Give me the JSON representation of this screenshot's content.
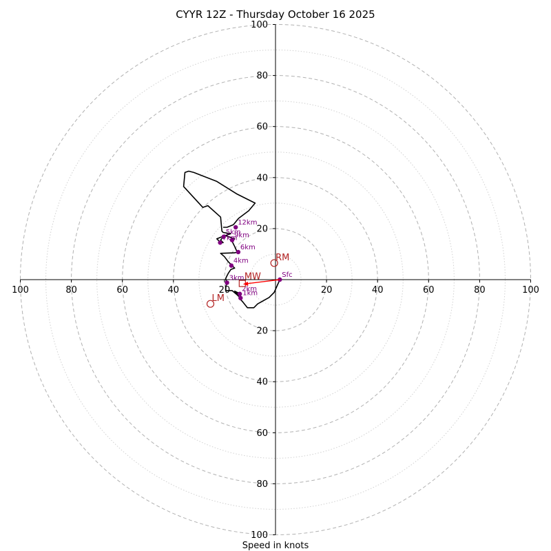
{
  "chart_data": {
    "type": "hodograph",
    "title": "CYYR 12Z - Thursday October 16 2025",
    "xlabel": "Speed in knots",
    "range": [
      -100,
      100
    ],
    "ring_major": [
      20,
      40,
      60,
      80,
      100
    ],
    "ring_minor": [
      10,
      30,
      50,
      70,
      90
    ],
    "x_tick_labels": [
      "100",
      "80",
      "60",
      "40",
      "20",
      "20",
      "40",
      "60",
      "80",
      "100"
    ],
    "x_tick_values": [
      -100,
      -80,
      -60,
      -40,
      -20,
      20,
      40,
      60,
      80,
      100
    ],
    "y_tick_labels": [
      "100",
      "80",
      "60",
      "40",
      "20",
      "20",
      "40",
      "60",
      "80",
      "100"
    ],
    "y_tick_values": [
      100,
      80,
      60,
      40,
      20,
      -20,
      -40,
      -60,
      -80,
      -100
    ],
    "profile_color": "#000000",
    "height_color": "#800080",
    "motion_color": "#b22222",
    "mean_wind_color": "#ff0000",
    "grid_color": "#b0b0b0",
    "profile": [
      [
        1.7,
        0
      ],
      [
        -0.5,
        -5
      ],
      [
        -2.5,
        -7
      ],
      [
        -7,
        -9.5
      ],
      [
        -8.5,
        -11
      ],
      [
        -11,
        -11
      ],
      [
        -13,
        -8.5
      ],
      [
        -14,
        -7.5
      ],
      [
        -13.5,
        -5.5
      ],
      [
        -15,
        -5
      ],
      [
        -16,
        -4.5
      ],
      [
        -15,
        -5.5
      ],
      [
        -14.5,
        -6.5
      ],
      [
        -15,
        -6
      ],
      [
        -17,
        -4.3
      ],
      [
        -19.5,
        -4.3
      ],
      [
        -19.5,
        -2.5
      ],
      [
        -19,
        -1.5
      ],
      [
        -19,
        -1
      ],
      [
        -19.5,
        0
      ],
      [
        -19.5,
        0.5
      ],
      [
        -19,
        1.5
      ],
      [
        -18.5,
        2.5
      ],
      [
        -17.5,
        4
      ],
      [
        -16,
        4.5
      ],
      [
        -17,
        5.5
      ],
      [
        -17.5,
        6
      ],
      [
        -18.5,
        7
      ],
      [
        -20,
        9
      ],
      [
        -21.5,
        10.3
      ],
      [
        -16,
        10.5
      ],
      [
        -15,
        10.8
      ],
      [
        -16,
        13
      ],
      [
        -17,
        15
      ],
      [
        -16,
        16
      ],
      [
        -17.5,
        16.5
      ],
      [
        -19,
        17
      ],
      [
        -20,
        17.5
      ],
      [
        -21.5,
        15.5
      ],
      [
        -20.5,
        14.5
      ],
      [
        -21.5,
        14.5
      ],
      [
        -23,
        16
      ],
      [
        -20.5,
        17
      ],
      [
        -19,
        17.5
      ],
      [
        -17.5,
        18
      ],
      [
        -20.5,
        18.5
      ],
      [
        -21,
        19
      ],
      [
        -21.5,
        24.5
      ],
      [
        -26.5,
        29
      ],
      [
        -28.5,
        28.3
      ],
      [
        -36,
        36.5
      ],
      [
        -35.5,
        42
      ],
      [
        -34,
        42.5
      ],
      [
        -32,
        42
      ],
      [
        -23,
        38.5
      ],
      [
        -15,
        33.5
      ],
      [
        -8,
        30
      ],
      [
        -10.5,
        27
      ],
      [
        -14.5,
        24
      ],
      [
        -16.5,
        21.5
      ],
      [
        -19,
        20.5
      ],
      [
        -20.5,
        20.5
      ]
    ],
    "height_markers": [
      {
        "label": "Sfc",
        "u": 1.7,
        "v": 0
      },
      {
        "label": "1km",
        "u": -13.7,
        "v": -7.2
      },
      {
        "label": "2km",
        "u": -14,
        "v": -5.6
      },
      {
        "label": "3km",
        "u": -19,
        "v": -1.2
      },
      {
        "label": "4km",
        "u": -17.3,
        "v": 5.5
      },
      {
        "label": "5km",
        "u": -20.3,
        "v": 16.8
      },
      {
        "label": "6km",
        "u": -14.6,
        "v": 10.8
      },
      {
        "label": "7km",
        "u": -21.7,
        "v": 14.5
      },
      {
        "label": "9km",
        "u": -17,
        "v": 15.5
      },
      {
        "label": "12km",
        "u": -15.6,
        "v": 20.5
      }
    ],
    "storm_motions": [
      {
        "label": "RM",
        "u": -0.5,
        "v": 6.5
      },
      {
        "label": "LM",
        "u": -25.5,
        "v": -9.5
      }
    ],
    "mean_wind": {
      "label": "MW",
      "u": -13,
      "v": -1.5
    }
  }
}
